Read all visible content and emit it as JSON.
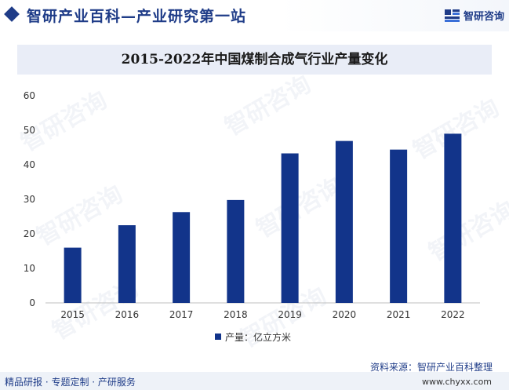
{
  "header": {
    "title": "智研产业百科—产业研究第一站",
    "brand_name": "智研咨询",
    "logo_icon": "zhiyan-logo-icon"
  },
  "chart_data": {
    "type": "bar",
    "title": "2015-2022年中国煤制合成气行业产量变化",
    "categories": [
      "2015",
      "2016",
      "2017",
      "2018",
      "2019",
      "2020",
      "2021",
      "2022"
    ],
    "series": [
      {
        "name": "产量：亿立方米",
        "values": [
          16,
          22.5,
          26.3,
          29.8,
          43.3,
          46.9,
          44.4,
          49
        ]
      }
    ],
    "ylim": [
      0,
      60
    ],
    "yticks": [
      0,
      10,
      20,
      30,
      40,
      50,
      60
    ],
    "grid": false,
    "legend": "bottom-center",
    "bar_color": "#12348a"
  },
  "source": "资料来源：智研产业百科整理",
  "footer": {
    "left": "精品研报 · 专题定制 · 产研服务",
    "right": "www.chyxx.com"
  },
  "watermark": "智研咨询"
}
